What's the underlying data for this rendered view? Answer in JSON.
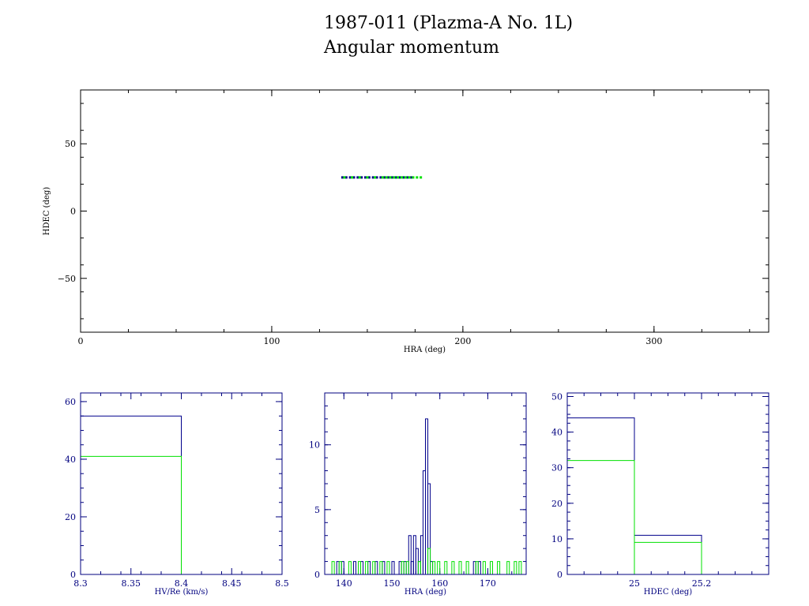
{
  "header": {
    "title": "1987-011 (Plazma-A No. 1L)",
    "subtitle": "Angular momentum"
  },
  "colors": {
    "axis_main": "#000000",
    "axis_hist": "#00007f",
    "series_primary": "#00008b",
    "series_secondary": "#00e000"
  },
  "chart_data": [
    {
      "type": "scatter",
      "xlabel": "HRA (deg)",
      "ylabel": "HDEC (deg)",
      "xlim": [
        0,
        360
      ],
      "ylim": [
        -90,
        90
      ],
      "x_ticks": [
        0,
        100,
        200,
        300
      ],
      "y_ticks": [
        50,
        0,
        -50
      ],
      "series": [
        {
          "color": "#00008b",
          "x": [
            137,
            139,
            141,
            143,
            145,
            147,
            149,
            151,
            153,
            155,
            157,
            159,
            161,
            163,
            165,
            167,
            169,
            171,
            173
          ],
          "y": [
            25,
            25,
            25,
            25,
            25,
            25,
            25,
            25,
            25,
            25,
            25,
            25,
            25,
            25,
            25,
            25,
            25,
            25,
            25
          ]
        },
        {
          "color": "#00e000",
          "x": [
            138,
            142,
            146,
            150,
            154,
            158,
            160,
            162,
            164,
            166,
            168,
            170,
            172,
            174,
            176,
            178
          ],
          "y": [
            25,
            25,
            25,
            25,
            25,
            25,
            25,
            25,
            25,
            25,
            25,
            25,
            25,
            25,
            25,
            25
          ]
        }
      ]
    },
    {
      "type": "histogram",
      "xlabel": "HV/Re (km/s)",
      "xlim": [
        8.3,
        8.5
      ],
      "ylim": [
        0,
        63
      ],
      "x_ticks": [
        8.3,
        8.35,
        8.4,
        8.45,
        8.5
      ],
      "x_tick_labels": [
        "8.3",
        "8.35",
        "8.4",
        "8.45",
        "8.5"
      ],
      "y_ticks": [
        0,
        20,
        40,
        60
      ],
      "series": [
        {
          "color": "#00008b",
          "bins": [
            [
              8.3,
              8.4,
              55
            ]
          ]
        },
        {
          "color": "#00e000",
          "bins": [
            [
              8.3,
              8.4,
              41
            ]
          ]
        }
      ]
    },
    {
      "type": "histogram",
      "xlabel": "HRA (deg)",
      "xlim": [
        136,
        178
      ],
      "ylim": [
        0,
        14
      ],
      "x_ticks": [
        140,
        150,
        160,
        170
      ],
      "x_tick_labels": [
        "140",
        "150",
        "160",
        "170"
      ],
      "y_ticks": [
        0,
        5,
        10
      ],
      "series": [
        {
          "color": "#00008b",
          "bins": [
            [
              138.5,
              139,
              1
            ],
            [
              139.5,
              140,
              1
            ],
            [
              142,
              142.5,
              1
            ],
            [
              143.5,
              144,
              1
            ],
            [
              145,
              145.5,
              1
            ],
            [
              146.5,
              147,
              1
            ],
            [
              148,
              148.5,
              1
            ],
            [
              150,
              150.5,
              1
            ],
            [
              151.5,
              152,
              1
            ],
            [
              152.5,
              153,
              1
            ],
            [
              153.5,
              154,
              3
            ],
            [
              154,
              154.5,
              1
            ],
            [
              154.5,
              155,
              3
            ],
            [
              155,
              155.5,
              2
            ],
            [
              155.5,
              156,
              1
            ],
            [
              156,
              156.5,
              3
            ],
            [
              156.5,
              157,
              8
            ],
            [
              157,
              157.5,
              12
            ],
            [
              157.5,
              158,
              7
            ],
            [
              158,
              158.5,
              1
            ],
            [
              167,
              167.5,
              1
            ],
            [
              168,
              168.5,
              1
            ]
          ]
        },
        {
          "color": "#00e000",
          "bins": [
            [
              137.5,
              138,
              1
            ],
            [
              139,
              139.5,
              1
            ],
            [
              141,
              141.5,
              1
            ],
            [
              143,
              143.5,
              1
            ],
            [
              144.5,
              145,
              1
            ],
            [
              146,
              146.5,
              1
            ],
            [
              147.5,
              148,
              1
            ],
            [
              149,
              149.5,
              1
            ],
            [
              152,
              152.5,
              1
            ],
            [
              153,
              153.5,
              1
            ],
            [
              155.5,
              156,
              1
            ],
            [
              157.5,
              158,
              2
            ],
            [
              158.5,
              159,
              1
            ],
            [
              159.5,
              160,
              1
            ],
            [
              161,
              161.5,
              1
            ],
            [
              162.5,
              163,
              1
            ],
            [
              164,
              164.5,
              1
            ],
            [
              165.5,
              166,
              1
            ],
            [
              167.5,
              168,
              1
            ],
            [
              169,
              169.5,
              1
            ],
            [
              170.5,
              171,
              1
            ],
            [
              172,
              172.5,
              1
            ],
            [
              174,
              174.5,
              1
            ],
            [
              175.5,
              176,
              1
            ],
            [
              176.5,
              177,
              1
            ]
          ]
        }
      ]
    },
    {
      "type": "histogram",
      "xlabel": "HDEC (deg)",
      "xlim": [
        24.8,
        25.4
      ],
      "ylim": [
        0,
        51
      ],
      "x_ticks": [
        25,
        25.2
      ],
      "x_tick_labels": [
        "25",
        "25.2"
      ],
      "y_ticks": [
        0,
        10,
        20,
        30,
        40,
        50
      ],
      "series": [
        {
          "color": "#00008b",
          "bins": [
            [
              24.8,
              25.0,
              44
            ],
            [
              25.0,
              25.2,
              11
            ]
          ]
        },
        {
          "color": "#00e000",
          "bins": [
            [
              24.8,
              25.0,
              32
            ],
            [
              25.0,
              25.2,
              9
            ]
          ]
        }
      ]
    }
  ]
}
